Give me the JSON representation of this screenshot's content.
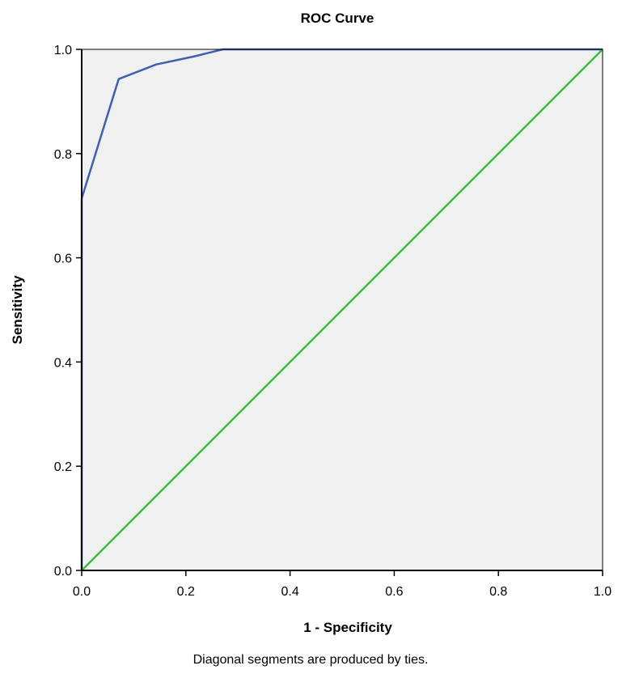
{
  "chart_data": {
    "type": "line",
    "title": "ROC Curve",
    "xlabel": "1 - Specificity",
    "ylabel": "Sensitivity",
    "footnote": "Diagonal segments are produced by ties.",
    "xlim": [
      0,
      1
    ],
    "ylim": [
      0,
      1
    ],
    "x_ticks": [
      "0.0",
      "0.2",
      "0.4",
      "0.6",
      "0.8",
      "1.0"
    ],
    "y_ticks": [
      "0.0",
      "0.2",
      "0.4",
      "0.6",
      "0.8",
      "1.0"
    ],
    "grid": false,
    "plot_background": "#f0f0f0",
    "series": [
      {
        "color": "#3f5fb0",
        "x": [
          0.0,
          0.0,
          0.071,
          0.143,
          0.214,
          0.271,
          1.0
        ],
        "y": [
          0.0,
          0.714,
          0.943,
          0.971,
          0.986,
          1.0,
          1.0
        ]
      },
      {
        "color": "#3cbb3c",
        "x": [
          0.0,
          1.0
        ],
        "y": [
          0.0,
          1.0
        ]
      }
    ]
  }
}
